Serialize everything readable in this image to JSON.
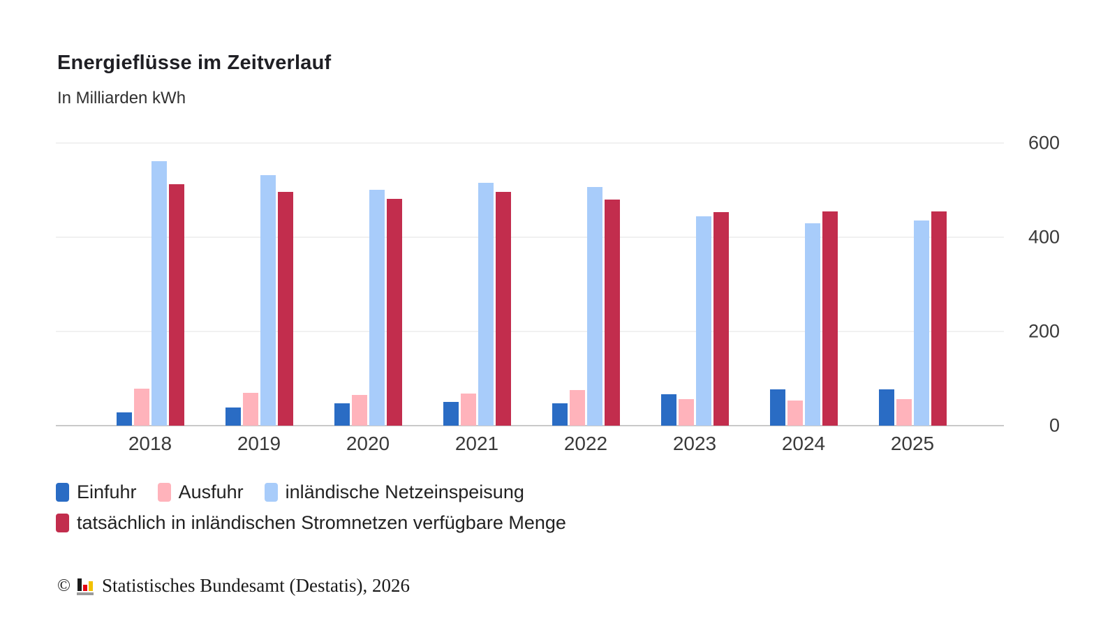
{
  "header": {
    "title": "Energieflüsse im Zeitverlauf",
    "subtitle": "In Milliarden kWh"
  },
  "chart_data": {
    "type": "bar",
    "title": "Energieflüsse im Zeitverlauf",
    "subtitle": "In Milliarden kWh",
    "unit": "Milliarden kWh",
    "categories": [
      "2018",
      "2019",
      "2020",
      "2021",
      "2022",
      "2023",
      "2024",
      "2025"
    ],
    "series": [
      {
        "name": "Einfuhr",
        "color": "#2a6cc4",
        "values": [
          28,
          38,
          48,
          50,
          48,
          66,
          77,
          77
        ]
      },
      {
        "name": "Ausfuhr",
        "color": "#ffb3bb",
        "values": [
          78,
          70,
          65,
          68,
          75,
          56,
          53,
          56
        ]
      },
      {
        "name": "inländische Netzeinspeisung",
        "color": "#a8ccfa",
        "values": [
          562,
          532,
          501,
          516,
          507,
          445,
          430,
          436
        ]
      },
      {
        "name": "tatsächlich in inländischen Stromnetzen verfügbare Menge",
        "color": "#c22d4d",
        "values": [
          513,
          496,
          482,
          496,
          480,
          454,
          455,
          455
        ]
      }
    ],
    "ylim": [
      0,
      600
    ],
    "yticks": [
      0,
      200,
      400,
      600
    ],
    "grid": true,
    "legend_position": "bottom",
    "y_axis_side": "right"
  },
  "footer": {
    "copyright_symbol": "©",
    "source": "Statistisches Bundesamt (Destatis), 2026",
    "logo_colors": {
      "bar1": "#1a1a1a",
      "bar2": "#e30613",
      "bar3": "#f2c100",
      "base": "#9b9b9b"
    }
  }
}
